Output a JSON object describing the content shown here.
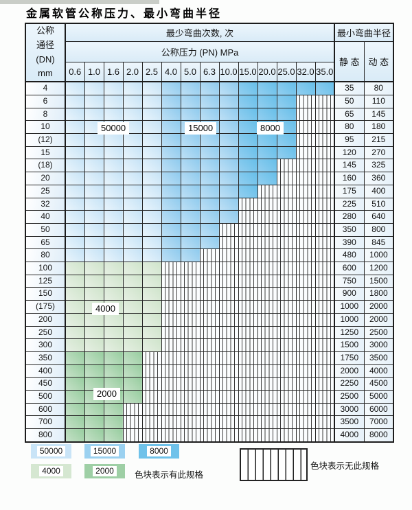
{
  "title": "金属软管公称压力、最小弯曲半径",
  "table": {
    "header": {
      "dn": "公称\n通径\n(DN)\nmm",
      "bend_cycles": "最少弯曲次数, 次",
      "pressure": "公称压力 (PN) MPa",
      "min_radius": "最小弯曲半径",
      "static": "静 态",
      "dynamic": "动 态"
    },
    "pressures": [
      "0.6",
      "1.0",
      "1.6",
      "2.0",
      "2.5",
      "4.0",
      "5.0",
      "6.3",
      "10.0",
      "15.0",
      "20.0",
      "25.0",
      "32.0",
      "35.0"
    ],
    "rows": [
      {
        "dn": "4",
        "cols": 14,
        "static": "35",
        "dynamic": "80"
      },
      {
        "dn": "6",
        "cols": 12,
        "static": "50",
        "dynamic": "110"
      },
      {
        "dn": "8",
        "cols": 12,
        "static": "65",
        "dynamic": "145"
      },
      {
        "dn": "10",
        "cols": 12,
        "static": "80",
        "dynamic": "180"
      },
      {
        "dn": "(12)",
        "cols": 12,
        "static": "95",
        "dynamic": "215"
      },
      {
        "dn": "15",
        "cols": 12,
        "static": "120",
        "dynamic": "270"
      },
      {
        "dn": "(18)",
        "cols": 11,
        "static": "145",
        "dynamic": "325"
      },
      {
        "dn": "20",
        "cols": 11,
        "static": "160",
        "dynamic": "360"
      },
      {
        "dn": "25",
        "cols": 10,
        "static": "175",
        "dynamic": "400"
      },
      {
        "dn": "32",
        "cols": 9,
        "static": "225",
        "dynamic": "510"
      },
      {
        "dn": "40",
        "cols": 9,
        "static": "280",
        "dynamic": "640"
      },
      {
        "dn": "50",
        "cols": 8,
        "static": "350",
        "dynamic": "800"
      },
      {
        "dn": "65",
        "cols": 8,
        "static": "390",
        "dynamic": "845"
      },
      {
        "dn": "80",
        "cols": 7,
        "static": "480",
        "dynamic": "1000"
      },
      {
        "dn": "100",
        "cols": 5,
        "zone": "g4",
        "static": "600",
        "dynamic": "1200"
      },
      {
        "dn": "125",
        "cols": 5,
        "zone": "g4",
        "static": "750",
        "dynamic": "1500"
      },
      {
        "dn": "150",
        "cols": 5,
        "zone": "g4",
        "static": "900",
        "dynamic": "1800"
      },
      {
        "dn": "(175)",
        "cols": 5,
        "zone": "g4",
        "static": "1000",
        "dynamic": "2000"
      },
      {
        "dn": "200",
        "cols": 5,
        "zone": "g4",
        "static": "1000",
        "dynamic": "2000"
      },
      {
        "dn": "250",
        "cols": 5,
        "zone": "g4",
        "static": "1250",
        "dynamic": "2500"
      },
      {
        "dn": "300",
        "cols": 5,
        "zone": "g4",
        "static": "1500",
        "dynamic": "3000"
      },
      {
        "dn": "350",
        "cols": 4,
        "zone": "g2",
        "static": "1750",
        "dynamic": "3500"
      },
      {
        "dn": "400",
        "cols": 4,
        "zone": "g2",
        "static": "2000",
        "dynamic": "4000"
      },
      {
        "dn": "450",
        "cols": 4,
        "zone": "g2",
        "static": "2250",
        "dynamic": "4500"
      },
      {
        "dn": "500",
        "cols": 4,
        "zone": "g2",
        "static": "2500",
        "dynamic": "5000"
      },
      {
        "dn": "600",
        "cols": 3,
        "zone": "g2",
        "static": "3000",
        "dynamic": "6000"
      },
      {
        "dn": "700",
        "cols": 3,
        "zone": "g2",
        "static": "3500",
        "dynamic": "7000"
      },
      {
        "dn": "800",
        "cols": 3,
        "zone": "g2",
        "static": "4000",
        "dynamic": "8000"
      }
    ],
    "cycle_zones": {
      "blue_by_column": {
        "50000": "0.6–2.5",
        "15000": "4.0–10.0",
        "8000": "15.0–35.0"
      },
      "green_by_row": {
        "4000": "DN100–300",
        "2000": "DN350–800"
      }
    }
  },
  "inline_labels": [
    {
      "text": "50000"
    },
    {
      "text": "15000"
    },
    {
      "text": "8000"
    },
    {
      "text": "4000"
    },
    {
      "text": "2000"
    }
  ],
  "legend": {
    "items": [
      {
        "label": "50000",
        "color": "#c9e4f7"
      },
      {
        "label": "15000",
        "color": "#9bd1f0"
      },
      {
        "label": "8000",
        "color": "#6fc2ea"
      },
      {
        "label": "4000",
        "color": "#d5e7d1"
      },
      {
        "label": "2000",
        "color": "#9ecfa5"
      }
    ],
    "has_text": "色块表示有此规格",
    "none_text": "色块表示无此规格"
  }
}
